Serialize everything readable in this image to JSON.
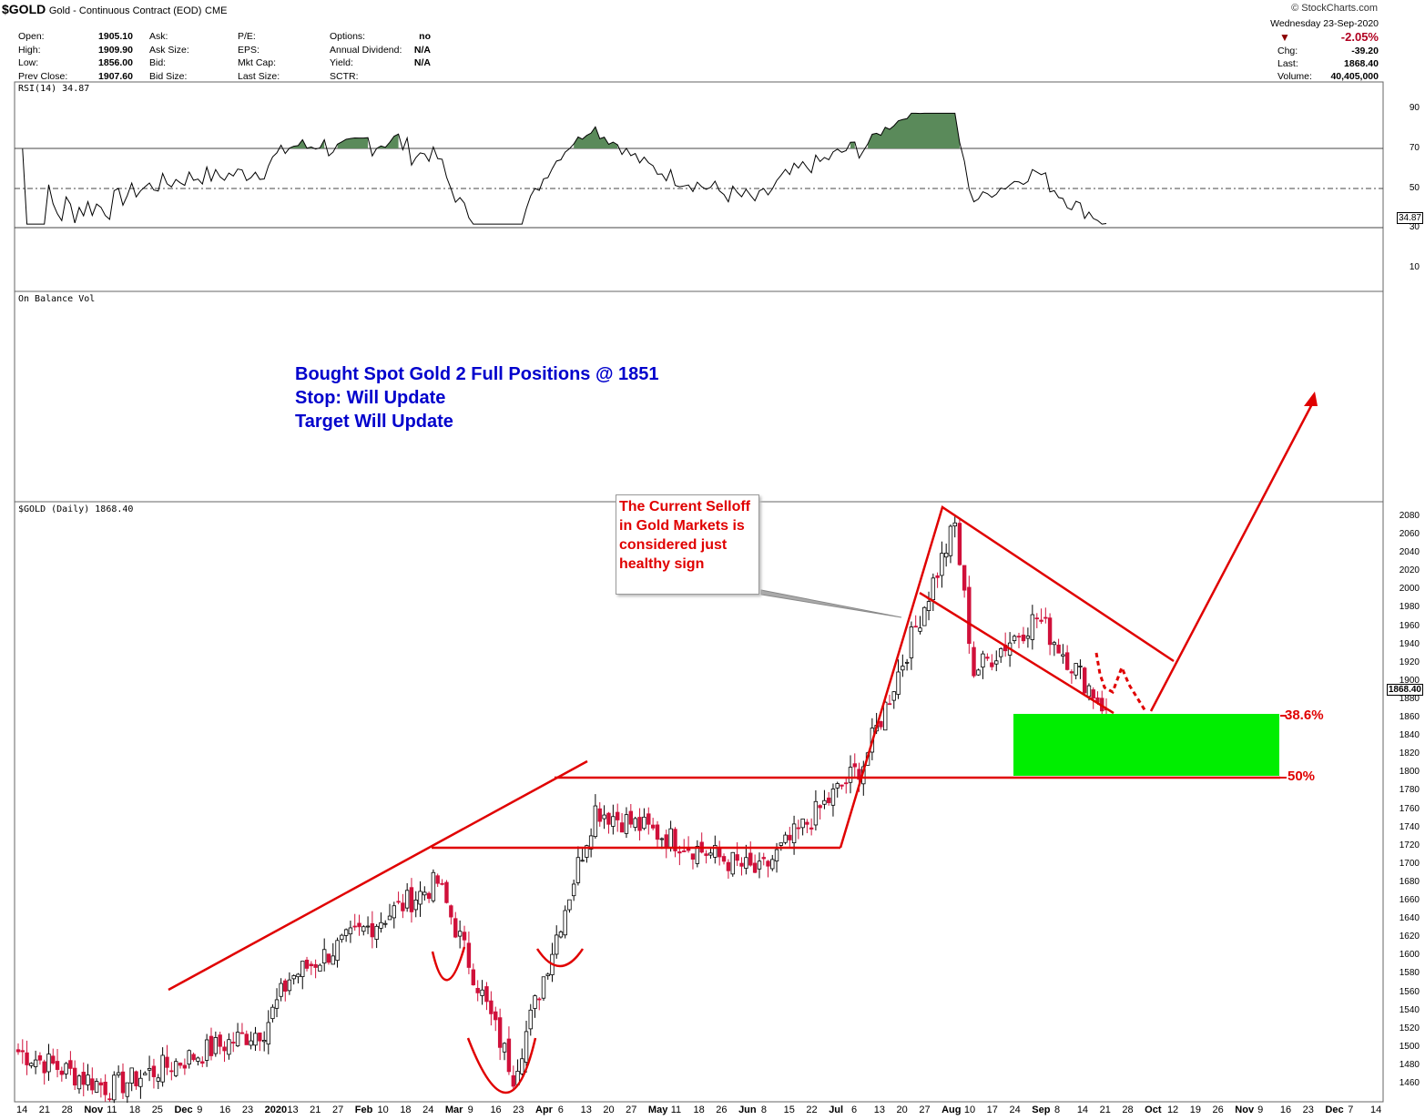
{
  "header": {
    "symbol": "$GOLD",
    "description": "Gold - Continuous Contract (EOD)",
    "exchange": "CME",
    "brand": "© StockCharts.com"
  },
  "quote": {
    "open_label": "Open:",
    "open": "1905.10",
    "high_label": "High:",
    "high": "1909.90",
    "low_label": "Low:",
    "low": "1856.00",
    "prevclose_label": "Prev Close:",
    "prevclose": "1907.60",
    "ask_label": "Ask:",
    "asksize_label": "Ask Size:",
    "bid_label": "Bid:",
    "bidsize_label": "Bid Size:",
    "pe_label": "P/E:",
    "eps_label": "EPS:",
    "mktcap_label": "Mkt Cap:",
    "lastsize_label": "Last Size:",
    "options_label": "Options:",
    "options": "no",
    "dividend_label": "Annual Dividend:",
    "dividend": "N/A",
    "yield_label": "Yield:",
    "yield": "N/A",
    "sctr_label": "SCTR:",
    "date": "Wednesday  23-Sep-2020",
    "pct_change": "-2.05%",
    "chg_label": "Chg:",
    "chg": "-39.20",
    "last_label": "Last:",
    "last": "1868.40",
    "volume_label": "Volume:",
    "volume": "40,405,000"
  },
  "colors": {
    "up": "#000000",
    "down": "#d0103a",
    "annotation": "#e00000",
    "blue_text": "#0000cc",
    "zone": "#00ee00",
    "rsi_fill": "#5a8a5a"
  },
  "rsi": {
    "label": "RSI(14) 34.87",
    "current": "34.87",
    "ticks": [
      "90",
      "70",
      "50",
      "30",
      "10"
    ],
    "overbought": 70,
    "oversold": 30
  },
  "obv": {
    "label": "On Balance Vol"
  },
  "price_panel": {
    "label": "$GOLD (Daily) 1868.40",
    "last_price": "1868.40"
  },
  "annotations": {
    "blue_lines": [
      "Bought Spot Gold 2 Full Positions @ 1851",
      "Stop: Will Update",
      "Target Will Update"
    ],
    "callout": "The Current Selloff in Gold Markets is considered just healthy sign",
    "fib_386": "38.6%",
    "fib_50": "50%"
  },
  "x_axis": [
    {
      "t": "14"
    },
    {
      "t": "21"
    },
    {
      "t": "28"
    },
    {
      "t": "Nov",
      "b": 1
    },
    {
      "t": "11"
    },
    {
      "t": "18"
    },
    {
      "t": "25"
    },
    {
      "t": "Dec",
      "b": 1
    },
    {
      "t": "9"
    },
    {
      "t": "16"
    },
    {
      "t": "23"
    },
    {
      "t": "2020",
      "b": 1
    },
    {
      "t": "13"
    },
    {
      "t": "21"
    },
    {
      "t": "27"
    },
    {
      "t": "Feb",
      "b": 1
    },
    {
      "t": "10"
    },
    {
      "t": "18"
    },
    {
      "t": "24"
    },
    {
      "t": "Mar",
      "b": 1
    },
    {
      "t": "9"
    },
    {
      "t": "16"
    },
    {
      "t": "23"
    },
    {
      "t": "Apr",
      "b": 1
    },
    {
      "t": "6"
    },
    {
      "t": "13"
    },
    {
      "t": "20"
    },
    {
      "t": "27"
    },
    {
      "t": "May",
      "b": 1
    },
    {
      "t": "11"
    },
    {
      "t": "18"
    },
    {
      "t": "26"
    },
    {
      "t": "Jun",
      "b": 1
    },
    {
      "t": "8"
    },
    {
      "t": "15"
    },
    {
      "t": "22"
    },
    {
      "t": "Jul",
      "b": 1
    },
    {
      "t": "6"
    },
    {
      "t": "13"
    },
    {
      "t": "20"
    },
    {
      "t": "27"
    },
    {
      "t": "Aug",
      "b": 1
    },
    {
      "t": "10"
    },
    {
      "t": "17"
    },
    {
      "t": "24"
    },
    {
      "t": "Sep",
      "b": 1
    },
    {
      "t": "8"
    },
    {
      "t": "14"
    },
    {
      "t": "21"
    },
    {
      "t": "28"
    },
    {
      "t": "Oct",
      "b": 1
    },
    {
      "t": "12"
    },
    {
      "t": "19"
    },
    {
      "t": "26"
    },
    {
      "t": "Nov",
      "b": 1
    },
    {
      "t": "9"
    },
    {
      "t": "16"
    },
    {
      "t": "23"
    },
    {
      "t": "Dec",
      "b": 1
    },
    {
      "t": "7"
    },
    {
      "t": "14"
    }
  ],
  "chart_data": {
    "type": "candlestick",
    "title": "$GOLD (Daily) 1868.40",
    "ylim": [
      1440,
      2100
    ],
    "y_ticks": [
      2080,
      2060,
      2040,
      2020,
      2000,
      1980,
      1960,
      1940,
      1920,
      1900,
      1880,
      1860,
      1840,
      1820,
      1800,
      1780,
      1760,
      1740,
      1720,
      1700,
      1680,
      1660,
      1640,
      1620,
      1600,
      1580,
      1560,
      1540,
      1520,
      1500,
      1480,
      1460
    ],
    "key_points": [
      {
        "date": "2019-10-14",
        "close": 1495
      },
      {
        "date": "2019-11-12",
        "close": 1455
      },
      {
        "date": "2019-12-31",
        "close": 1520
      },
      {
        "date": "2020-01-08",
        "close": 1575
      },
      {
        "date": "2020-02-24",
        "close": 1680
      },
      {
        "date": "2020-03-19",
        "close": 1470
      },
      {
        "date": "2020-04-14",
        "close": 1760
      },
      {
        "date": "2020-06-05",
        "close": 1690
      },
      {
        "date": "2020-07-08",
        "close": 1810
      },
      {
        "date": "2020-08-06",
        "close": 2070
      },
      {
        "date": "2020-08-12",
        "close": 1910
      },
      {
        "date": "2020-09-01",
        "close": 1970
      },
      {
        "date": "2020-09-23",
        "close": 1868.4
      }
    ],
    "levels": {
      "fib_38_6": 1840,
      "fib_50": 1765
    }
  }
}
